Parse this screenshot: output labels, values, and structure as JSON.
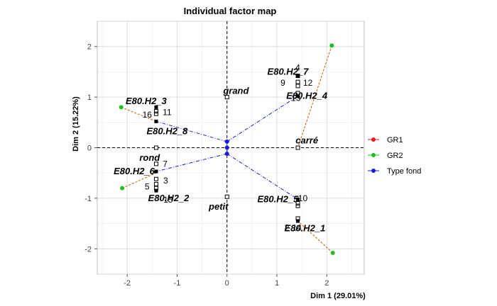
{
  "chart_data": {
    "type": "scatter",
    "title": "Individual factor map",
    "xlabel": "Dim 1 (29.01%)",
    "ylabel": "Dim 2 (15.22%)",
    "xlim": [
      -2.6,
      2.75
    ],
    "ylim": [
      -2.5,
      2.5
    ],
    "x_ticks": [
      -2,
      -1,
      0,
      1,
      2
    ],
    "y_ticks": [
      -2,
      -1,
      0,
      1,
      2
    ],
    "grid": true,
    "legend_position": "right",
    "colors": {
      "GR1": "#e41a1c",
      "GR2": "#1fbf1f",
      "Type fond": "#1a1adb",
      "GR_line": "#c85a00"
    },
    "legend": [
      {
        "name": "GR1",
        "color": "#e41a1c"
      },
      {
        "name": "GR2",
        "color": "#1fbf1f"
      },
      {
        "name": "Type fond",
        "color": "#1a1adb"
      }
    ],
    "products": [
      {
        "label": "E80.H2_7",
        "x": 1.42,
        "y": 1.42,
        "lx": 1.22,
        "ly": 1.5
      },
      {
        "label": "E80.H2_4",
        "x": 1.42,
        "y": 1.02,
        "lx": 1.6,
        "ly": 1.02
      },
      {
        "label": "E80.H2_3",
        "x": -1.42,
        "y": 0.8,
        "lx": -1.62,
        "ly": 0.92
      },
      {
        "label": "E80.H2_8",
        "x": -1.42,
        "y": 0.52,
        "lx": -1.2,
        "ly": 0.32
      },
      {
        "label": "E80.H2_6",
        "x": -1.42,
        "y": -0.47,
        "lx": -1.86,
        "ly": -0.47
      },
      {
        "label": "E80.H2_2",
        "x": -1.42,
        "y": -0.85,
        "lx": -1.17,
        "ly": -1.0
      },
      {
        "label": "E80.H2_5",
        "x": 1.42,
        "y": -1.02,
        "lx": 1.02,
        "ly": -1.02
      },
      {
        "label": "E80.H2_1",
        "x": 1.42,
        "y": -1.45,
        "lx": 1.56,
        "ly": -1.6
      }
    ],
    "panelists": [
      {
        "label": "4",
        "x": 1.42,
        "y": 1.42,
        "lx": 1.42,
        "ly": 1.58
      },
      {
        "label": "9",
        "x": 1.42,
        "y": 1.3,
        "lx": 1.12,
        "ly": 1.28
      },
      {
        "label": "12",
        "x": 1.42,
        "y": 1.22,
        "lx": 1.62,
        "ly": 1.28
      },
      {
        "label": "13",
        "x": 1.42,
        "y": 1.08,
        "lx": 1.38,
        "ly": 0.98
      },
      {
        "label": "16",
        "x": -1.42,
        "y": 0.72,
        "lx": -1.6,
        "ly": 0.65
      },
      {
        "label": "11",
        "x": -1.42,
        "y": 0.67,
        "lx": -1.2,
        "ly": 0.7
      },
      {
        "label": "7",
        "x": -1.42,
        "y": -0.32,
        "lx": -1.24,
        "ly": -0.32
      },
      {
        "label": "5",
        "x": -1.42,
        "y": -0.72,
        "lx": -1.6,
        "ly": -0.77
      },
      {
        "label": "3",
        "x": -1.42,
        "y": -0.62,
        "lx": -1.23,
        "ly": -0.65
      },
      {
        "label": "15",
        "x": -1.42,
        "y": -0.8,
        "lx": -1.18,
        "ly": -1.03
      },
      {
        "label": "10",
        "x": 1.42,
        "y": -1.1,
        "lx": 1.52,
        "ly": -1.0
      },
      {
        "label": "2",
        "x": 1.42,
        "y": -1.15,
        "lx": 1.2,
        "ly": -1.58
      },
      {
        "label": "14",
        "x": 1.42,
        "y": -1.4,
        "lx": 1.4,
        "ly": -1.58
      }
    ],
    "modalities": [
      {
        "label": "grand",
        "x": 0.0,
        "y": 1.0,
        "lx": 0.18,
        "ly": 1.12
      },
      {
        "label": "petit",
        "x": 0.0,
        "y": -0.97,
        "lx": -0.17,
        "ly": -1.17
      },
      {
        "label": "carré",
        "x": 1.42,
        "y": 0.0,
        "lx": 1.6,
        "ly": 0.14
      },
      {
        "label": "rond",
        "x": -1.42,
        "y": 0.0,
        "lx": -1.55,
        "ly": -0.2
      }
    ],
    "group_points": [
      {
        "group": "GR2",
        "x": 2.1,
        "y": 2.02
      },
      {
        "group": "GR2",
        "x": -2.12,
        "y": 0.8
      },
      {
        "group": "GR2",
        "x": -2.1,
        "y": -0.8
      },
      {
        "group": "GR2",
        "x": 2.12,
        "y": -2.08
      },
      {
        "group": "Type fond",
        "x": 0.0,
        "y": 0.12
      },
      {
        "group": "Type fond",
        "x": 0.0,
        "y": -0.12
      },
      {
        "group": "Type fond",
        "x": 0.0,
        "y": 0.0
      }
    ]
  }
}
